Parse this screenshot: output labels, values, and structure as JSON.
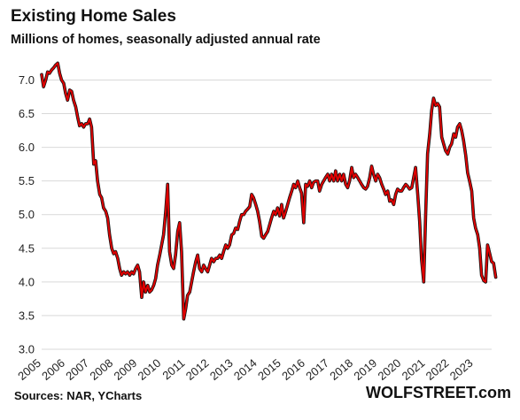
{
  "title": "Existing Home Sales",
  "subtitle": "Millions of homes, seasonally adjusted annual rate",
  "source": "Sources: NAR, YCharts",
  "brand": "WOLFSTREET.com",
  "colors": {
    "line": "#e00000",
    "outline": "#111111",
    "grid": "#d9d9d9",
    "background": "#ffffff"
  },
  "chart_data": {
    "type": "line",
    "title": "Existing Home Sales",
    "ylabel": "",
    "xlabel": "",
    "ylim": [
      3.0,
      7.4
    ],
    "xlim": [
      2005.0,
      2023.75
    ],
    "grid": "horizontal",
    "y_ticks": [
      3.0,
      3.5,
      4.0,
      4.5,
      5.0,
      5.5,
      6.0,
      6.5,
      7.0
    ],
    "y_tick_labels": [
      "3.0",
      "3.5",
      "4.0",
      "4.5",
      "5.0",
      "5.5",
      "6.0",
      "6.5",
      "7.0"
    ],
    "x_tick_labels": [
      "2005",
      "2006",
      "2007",
      "2008",
      "2009",
      "2010",
      "2011",
      "2012",
      "2013",
      "2014",
      "2015",
      "2016",
      "2017",
      "2018",
      "2019",
      "2020",
      "2021",
      "2022",
      "2023"
    ],
    "series": [
      {
        "points": [
          [
            2005.0,
            7.08
          ],
          [
            2005.08,
            6.9
          ],
          [
            2005.17,
            7.0
          ],
          [
            2005.25,
            7.12
          ],
          [
            2005.33,
            7.1
          ],
          [
            2005.42,
            7.15
          ],
          [
            2005.5,
            7.18
          ],
          [
            2005.58,
            7.22
          ],
          [
            2005.67,
            7.25
          ],
          [
            2005.75,
            7.1
          ],
          [
            2005.83,
            7.0
          ],
          [
            2005.92,
            6.95
          ],
          [
            2006.0,
            6.8
          ],
          [
            2006.08,
            6.7
          ],
          [
            2006.17,
            6.85
          ],
          [
            2006.25,
            6.83
          ],
          [
            2006.33,
            6.7
          ],
          [
            2006.42,
            6.6
          ],
          [
            2006.5,
            6.45
          ],
          [
            2006.58,
            6.32
          ],
          [
            2006.67,
            6.35
          ],
          [
            2006.75,
            6.3
          ],
          [
            2006.83,
            6.35
          ],
          [
            2006.92,
            6.35
          ],
          [
            2007.0,
            6.42
          ],
          [
            2007.08,
            6.3
          ],
          [
            2007.17,
            5.75
          ],
          [
            2007.25,
            5.8
          ],
          [
            2007.33,
            5.5
          ],
          [
            2007.42,
            5.3
          ],
          [
            2007.5,
            5.25
          ],
          [
            2007.58,
            5.1
          ],
          [
            2007.67,
            5.05
          ],
          [
            2007.75,
            4.95
          ],
          [
            2007.83,
            4.7
          ],
          [
            2007.92,
            4.5
          ],
          [
            2008.0,
            4.42
          ],
          [
            2008.08,
            4.45
          ],
          [
            2008.17,
            4.35
          ],
          [
            2008.25,
            4.2
          ],
          [
            2008.33,
            4.1
          ],
          [
            2008.42,
            4.15
          ],
          [
            2008.5,
            4.12
          ],
          [
            2008.58,
            4.15
          ],
          [
            2008.67,
            4.1
          ],
          [
            2008.75,
            4.15
          ],
          [
            2008.83,
            4.12
          ],
          [
            2008.92,
            4.2
          ],
          [
            2009.0,
            4.25
          ],
          [
            2009.08,
            4.15
          ],
          [
            2009.17,
            3.77
          ],
          [
            2009.25,
            4.0
          ],
          [
            2009.33,
            3.85
          ],
          [
            2009.42,
            3.95
          ],
          [
            2009.5,
            3.85
          ],
          [
            2009.58,
            3.88
          ],
          [
            2009.67,
            3.95
          ],
          [
            2009.75,
            4.05
          ],
          [
            2009.83,
            4.25
          ],
          [
            2009.92,
            4.4
          ],
          [
            2010.0,
            4.55
          ],
          [
            2010.08,
            4.7
          ],
          [
            2010.17,
            5.05
          ],
          [
            2010.25,
            5.45
          ],
          [
            2010.33,
            4.45
          ],
          [
            2010.42,
            4.25
          ],
          [
            2010.5,
            4.2
          ],
          [
            2010.58,
            4.4
          ],
          [
            2010.67,
            4.75
          ],
          [
            2010.75,
            4.88
          ],
          [
            2010.83,
            4.45
          ],
          [
            2010.92,
            3.45
          ],
          [
            2011.0,
            3.6
          ],
          [
            2011.08,
            3.8
          ],
          [
            2011.17,
            3.85
          ],
          [
            2011.25,
            4.0
          ],
          [
            2011.33,
            4.15
          ],
          [
            2011.42,
            4.3
          ],
          [
            2011.5,
            4.4
          ],
          [
            2011.58,
            4.2
          ],
          [
            2011.67,
            4.15
          ],
          [
            2011.75,
            4.25
          ],
          [
            2011.83,
            4.2
          ],
          [
            2011.92,
            4.15
          ],
          [
            2012.0,
            4.25
          ],
          [
            2012.08,
            4.35
          ],
          [
            2012.17,
            4.3
          ],
          [
            2012.25,
            4.35
          ],
          [
            2012.33,
            4.35
          ],
          [
            2012.42,
            4.4
          ],
          [
            2012.5,
            4.35
          ],
          [
            2012.58,
            4.45
          ],
          [
            2012.67,
            4.55
          ],
          [
            2012.75,
            4.5
          ],
          [
            2012.83,
            4.55
          ],
          [
            2012.92,
            4.7
          ],
          [
            2013.0,
            4.72
          ],
          [
            2013.08,
            4.8
          ],
          [
            2013.17,
            4.78
          ],
          [
            2013.25,
            4.9
          ],
          [
            2013.33,
            5.0
          ],
          [
            2013.42,
            5.0
          ],
          [
            2013.5,
            5.05
          ],
          [
            2013.58,
            5.08
          ],
          [
            2013.67,
            5.12
          ],
          [
            2013.75,
            5.3
          ],
          [
            2013.83,
            5.25
          ],
          [
            2013.92,
            5.15
          ],
          [
            2014.0,
            5.05
          ],
          [
            2014.08,
            4.9
          ],
          [
            2014.17,
            4.68
          ],
          [
            2014.25,
            4.65
          ],
          [
            2014.33,
            4.7
          ],
          [
            2014.42,
            4.75
          ],
          [
            2014.5,
            4.85
          ],
          [
            2014.58,
            4.95
          ],
          [
            2014.67,
            5.05
          ],
          [
            2014.75,
            5.0
          ],
          [
            2014.83,
            5.1
          ],
          [
            2014.92,
            4.98
          ],
          [
            2015.0,
            5.15
          ],
          [
            2015.08,
            4.95
          ],
          [
            2015.17,
            5.05
          ],
          [
            2015.25,
            5.15
          ],
          [
            2015.33,
            5.25
          ],
          [
            2015.42,
            5.35
          ],
          [
            2015.5,
            5.45
          ],
          [
            2015.58,
            5.4
          ],
          [
            2015.67,
            5.5
          ],
          [
            2015.75,
            5.4
          ],
          [
            2015.83,
            5.32
          ],
          [
            2015.92,
            4.88
          ],
          [
            2016.0,
            5.45
          ],
          [
            2016.08,
            5.42
          ],
          [
            2016.17,
            5.5
          ],
          [
            2016.25,
            5.4
          ],
          [
            2016.33,
            5.48
          ],
          [
            2016.42,
            5.5
          ],
          [
            2016.5,
            5.5
          ],
          [
            2016.58,
            5.35
          ],
          [
            2016.67,
            5.45
          ],
          [
            2016.75,
            5.5
          ],
          [
            2016.83,
            5.55
          ],
          [
            2016.92,
            5.6
          ],
          [
            2017.0,
            5.5
          ],
          [
            2017.08,
            5.6
          ],
          [
            2017.17,
            5.5
          ],
          [
            2017.25,
            5.65
          ],
          [
            2017.33,
            5.5
          ],
          [
            2017.42,
            5.6
          ],
          [
            2017.5,
            5.5
          ],
          [
            2017.58,
            5.6
          ],
          [
            2017.67,
            5.45
          ],
          [
            2017.75,
            5.4
          ],
          [
            2017.83,
            5.5
          ],
          [
            2017.92,
            5.7
          ],
          [
            2018.0,
            5.55
          ],
          [
            2018.08,
            5.6
          ],
          [
            2018.17,
            5.55
          ],
          [
            2018.25,
            5.5
          ],
          [
            2018.33,
            5.45
          ],
          [
            2018.42,
            5.4
          ],
          [
            2018.5,
            5.38
          ],
          [
            2018.58,
            5.42
          ],
          [
            2018.67,
            5.55
          ],
          [
            2018.75,
            5.72
          ],
          [
            2018.83,
            5.6
          ],
          [
            2018.92,
            5.5
          ],
          [
            2019.0,
            5.6
          ],
          [
            2019.08,
            5.55
          ],
          [
            2019.17,
            5.45
          ],
          [
            2019.25,
            5.38
          ],
          [
            2019.33,
            5.3
          ],
          [
            2019.42,
            5.35
          ],
          [
            2019.5,
            5.2
          ],
          [
            2019.58,
            5.22
          ],
          [
            2019.67,
            5.15
          ],
          [
            2019.75,
            5.3
          ],
          [
            2019.83,
            5.38
          ],
          [
            2019.92,
            5.35
          ],
          [
            2020.0,
            5.35
          ],
          [
            2020.08,
            5.4
          ],
          [
            2020.17,
            5.45
          ],
          [
            2020.25,
            5.42
          ],
          [
            2020.33,
            5.38
          ],
          [
            2020.42,
            5.4
          ],
          [
            2020.5,
            5.55
          ],
          [
            2020.58,
            5.7
          ],
          [
            2020.67,
            5.3
          ],
          [
            2020.75,
            4.9
          ],
          [
            2020.83,
            4.33
          ],
          [
            2020.92,
            4.0
          ],
          [
            2021.0,
            5.0
          ],
          [
            2021.08,
            5.9
          ],
          [
            2021.17,
            6.2
          ],
          [
            2021.25,
            6.55
          ],
          [
            2021.33,
            6.73
          ],
          [
            2021.42,
            6.62
          ],
          [
            2021.5,
            6.65
          ],
          [
            2021.58,
            6.6
          ],
          [
            2021.67,
            6.15
          ],
          [
            2021.75,
            6.05
          ],
          [
            2021.83,
            5.95
          ],
          [
            2021.92,
            5.9
          ],
          [
            2022.0,
            6.0
          ],
          [
            2022.08,
            6.05
          ],
          [
            2022.17,
            6.2
          ],
          [
            2022.25,
            6.15
          ],
          [
            2022.33,
            6.3
          ],
          [
            2022.42,
            6.35
          ],
          [
            2022.5,
            6.25
          ],
          [
            2022.58,
            6.1
          ],
          [
            2022.67,
            5.88
          ],
          [
            2022.75,
            5.62
          ],
          [
            2022.83,
            5.5
          ],
          [
            2022.92,
            5.35
          ],
          [
            2023.0,
            4.95
          ],
          [
            2023.08,
            4.8
          ],
          [
            2023.17,
            4.7
          ],
          [
            2023.25,
            4.5
          ],
          [
            2023.33,
            4.1
          ],
          [
            2023.42,
            4.02
          ],
          [
            2023.5,
            4.0
          ],
          [
            2023.58,
            4.55
          ],
          [
            2023.67,
            4.42
          ],
          [
            2023.75,
            4.3
          ],
          [
            2023.83,
            4.28
          ],
          [
            2023.92,
            4.07
          ]
        ]
      }
    ]
  }
}
